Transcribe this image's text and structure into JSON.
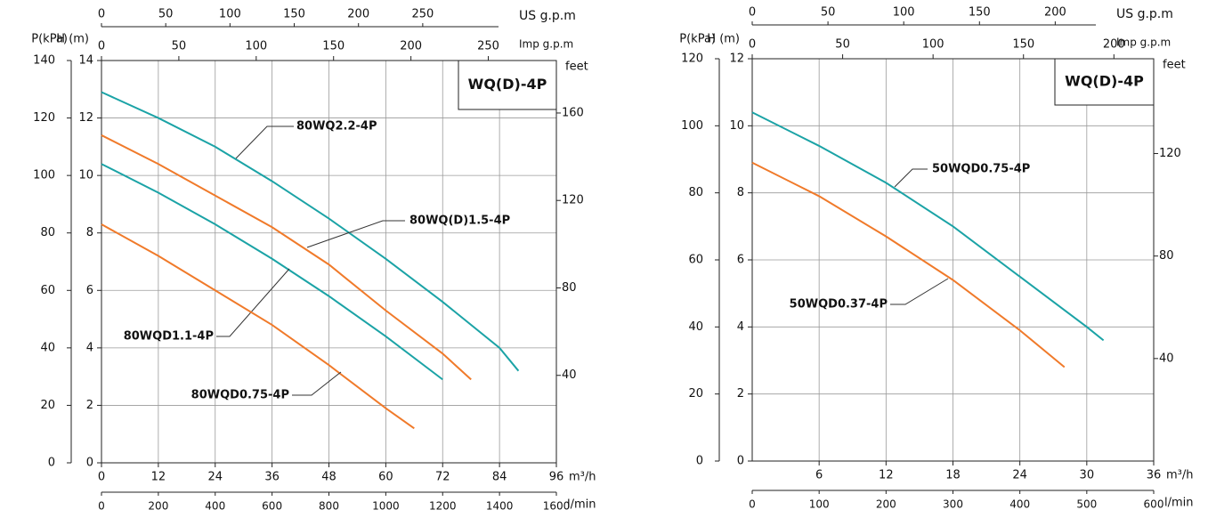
{
  "chart_data": [
    {
      "type": "line",
      "title": "WQ(D)-4P",
      "xlabel": "m³/h",
      "ylabel": "H (m)",
      "xlim": [
        0,
        96
      ],
      "xticks": [
        0,
        12,
        24,
        36,
        48,
        60,
        72,
        84,
        96
      ],
      "ylim": [
        0,
        14
      ],
      "yticks": [
        0,
        2,
        4,
        6,
        8,
        10,
        12,
        14
      ],
      "p_label": "P(kPa)",
      "p_lim": [
        0,
        140
      ],
      "p_ticks": [
        0,
        20,
        40,
        60,
        80,
        100,
        120,
        140
      ],
      "y2label": "feet",
      "y2lim": [
        0,
        184
      ],
      "y2ticks": [
        40,
        80,
        120,
        160
      ],
      "us_label": "US g.p.m",
      "us_lim": [
        0,
        354
      ],
      "us_ticks": [
        0,
        50,
        100,
        150,
        200,
        250
      ],
      "imp_label": "Imp g.p.m",
      "imp_lim": [
        0,
        294
      ],
      "imp_ticks": [
        0,
        50,
        100,
        150,
        200,
        250
      ],
      "lmin_label": "l/min",
      "lmin_lim": [
        0,
        1600
      ],
      "lmin_ticks": [
        0,
        200,
        400,
        600,
        800,
        1000,
        1200,
        1400,
        1600
      ],
      "grid": true,
      "series": [
        {
          "name": "80WQ2.2-4P",
          "color": "#1ba3a6",
          "x": [
            0,
            12,
            24,
            36,
            48,
            60,
            72,
            84,
            88
          ],
          "values": [
            12.9,
            12.0,
            11.0,
            9.8,
            8.5,
            7.1,
            5.6,
            4.0,
            3.2
          ]
        },
        {
          "name": "80WQ(D)1.5-4P",
          "color": "#f07a2a",
          "x": [
            0,
            12,
            24,
            36,
            48,
            60,
            72,
            78
          ],
          "values": [
            11.4,
            10.4,
            9.3,
            8.2,
            6.9,
            5.3,
            3.8,
            2.9
          ]
        },
        {
          "name": "80WQD1.1-4P",
          "color": "#1ba3a6",
          "x": [
            0,
            12,
            24,
            36,
            48,
            60,
            72
          ],
          "values": [
            10.4,
            9.4,
            8.3,
            7.1,
            5.8,
            4.4,
            2.9
          ]
        },
        {
          "name": "80WQD0.75-4P",
          "color": "#f07a2a",
          "x": [
            0,
            12,
            24,
            36,
            48,
            60,
            66
          ],
          "values": [
            8.3,
            7.2,
            6.0,
            4.8,
            3.4,
            1.9,
            1.2
          ]
        }
      ]
    },
    {
      "type": "line",
      "title": "WQ(D)-4P",
      "xlabel": "m³/h",
      "ylabel": "H (m)",
      "xlim": [
        0,
        36
      ],
      "xticks": [
        6,
        12,
        18,
        24,
        30,
        36
      ],
      "ylim": [
        0,
        12
      ],
      "yticks": [
        0,
        2,
        4,
        6,
        8,
        10,
        12
      ],
      "p_label": "P(kPa)",
      "p_lim": [
        0,
        120
      ],
      "p_ticks": [
        0,
        20,
        40,
        60,
        80,
        100,
        120
      ],
      "y2label": "feet",
      "y2lim": [
        0,
        157
      ],
      "y2ticks": [
        40,
        80,
        120
      ],
      "us_label": "US g.p.m",
      "us_lim": [
        0,
        265
      ],
      "us_ticks": [
        0,
        50,
        100,
        150,
        200
      ],
      "imp_label": "Imp g.p.m",
      "imp_lim": [
        0,
        222
      ],
      "imp_ticks": [
        0,
        50,
        100,
        150,
        200
      ],
      "lmin_label": "l/min",
      "lmin_lim": [
        0,
        600
      ],
      "lmin_ticks": [
        0,
        100,
        200,
        300,
        400,
        500,
        600
      ],
      "grid": true,
      "series": [
        {
          "name": "50WQD0.75-4P",
          "color": "#1ba3a6",
          "x": [
            0,
            6,
            12,
            18,
            24,
            30,
            31.5
          ],
          "values": [
            10.4,
            9.4,
            8.3,
            7.0,
            5.5,
            4.0,
            3.6
          ]
        },
        {
          "name": "50WQD0.37-4P",
          "color": "#f07a2a",
          "x": [
            0,
            6,
            12,
            18,
            24,
            28
          ],
          "values": [
            8.9,
            7.9,
            6.7,
            5.4,
            3.9,
            2.8
          ]
        }
      ]
    }
  ]
}
